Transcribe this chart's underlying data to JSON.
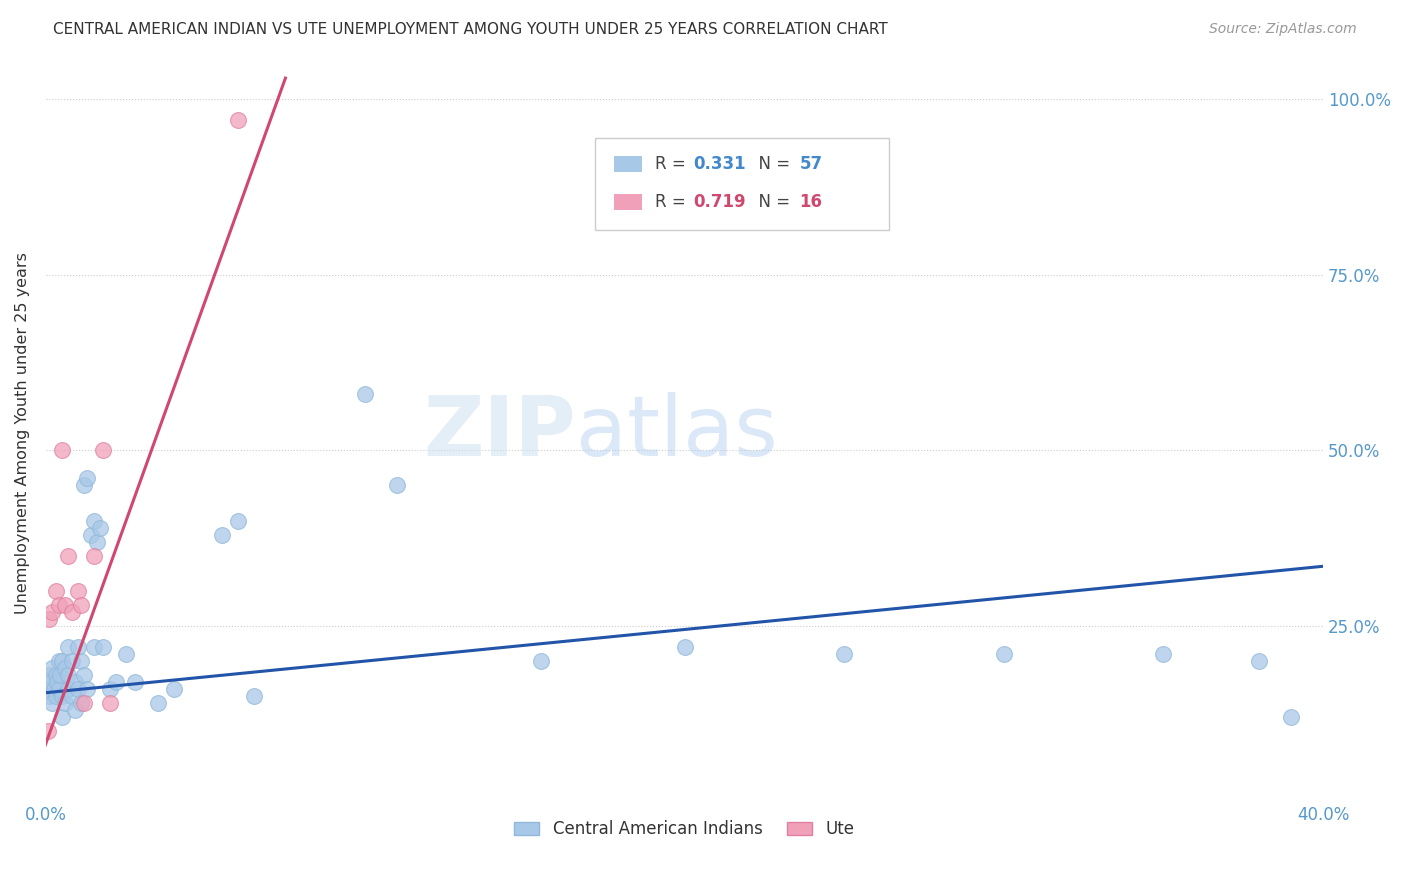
{
  "title": "CENTRAL AMERICAN INDIAN VS UTE UNEMPLOYMENT AMONG YOUTH UNDER 25 YEARS CORRELATION CHART",
  "source": "Source: ZipAtlas.com",
  "ylabel": "Unemployment Among Youth under 25 years",
  "xlim": [
    0.0,
    0.4
  ],
  "ylim": [
    0.0,
    1.05
  ],
  "blue_color": "#a8c8e8",
  "blue_edge_color": "#90b8d8",
  "pink_color": "#f0a0b8",
  "pink_edge_color": "#e080a0",
  "blue_line_color": "#2255aa",
  "pink_line_color": "#d04870",
  "watermark_zip": "ZIP",
  "watermark_atlas": "atlas",
  "blue_scatter_x": [
    0.0005,
    0.001,
    0.001,
    0.0015,
    0.002,
    0.002,
    0.0025,
    0.003,
    0.003,
    0.0035,
    0.004,
    0.004,
    0.0045,
    0.005,
    0.005,
    0.005,
    0.006,
    0.006,
    0.007,
    0.007,
    0.007,
    0.008,
    0.008,
    0.009,
    0.009,
    0.01,
    0.01,
    0.011,
    0.011,
    0.012,
    0.012,
    0.013,
    0.013,
    0.014,
    0.015,
    0.015,
    0.016,
    0.017,
    0.018,
    0.02,
    0.022,
    0.025,
    0.028,
    0.035,
    0.04,
    0.055,
    0.06,
    0.065,
    0.1,
    0.11,
    0.155,
    0.2,
    0.25,
    0.3,
    0.35,
    0.38,
    0.39
  ],
  "blue_scatter_y": [
    0.16,
    0.18,
    0.15,
    0.17,
    0.19,
    0.14,
    0.16,
    0.18,
    0.15,
    0.17,
    0.2,
    0.16,
    0.18,
    0.2,
    0.15,
    0.12,
    0.19,
    0.14,
    0.22,
    0.16,
    0.18,
    0.2,
    0.15,
    0.17,
    0.13,
    0.22,
    0.16,
    0.2,
    0.14,
    0.18,
    0.45,
    0.16,
    0.46,
    0.38,
    0.4,
    0.22,
    0.37,
    0.39,
    0.22,
    0.16,
    0.17,
    0.21,
    0.17,
    0.14,
    0.16,
    0.38,
    0.4,
    0.15,
    0.58,
    0.45,
    0.2,
    0.22,
    0.21,
    0.21,
    0.21,
    0.2,
    0.12
  ],
  "pink_scatter_x": [
    0.0005,
    0.001,
    0.002,
    0.003,
    0.004,
    0.005,
    0.006,
    0.007,
    0.008,
    0.01,
    0.011,
    0.012,
    0.015,
    0.018,
    0.02,
    0.06
  ],
  "pink_scatter_y": [
    0.1,
    0.26,
    0.27,
    0.3,
    0.28,
    0.5,
    0.28,
    0.35,
    0.27,
    0.3,
    0.28,
    0.14,
    0.35,
    0.5,
    0.14,
    0.97
  ],
  "blue_line_x": [
    0.0,
    0.4
  ],
  "blue_line_y": [
    0.155,
    0.335
  ],
  "pink_line_x": [
    -0.005,
    0.075
  ],
  "pink_line_y": [
    0.02,
    1.03
  ],
  "legend_r1": "0.331",
  "legend_n1": "57",
  "legend_r2": "0.719",
  "legend_n2": "16",
  "bottom_label_blue": "Central American Indians",
  "bottom_label_pink": "Ute"
}
